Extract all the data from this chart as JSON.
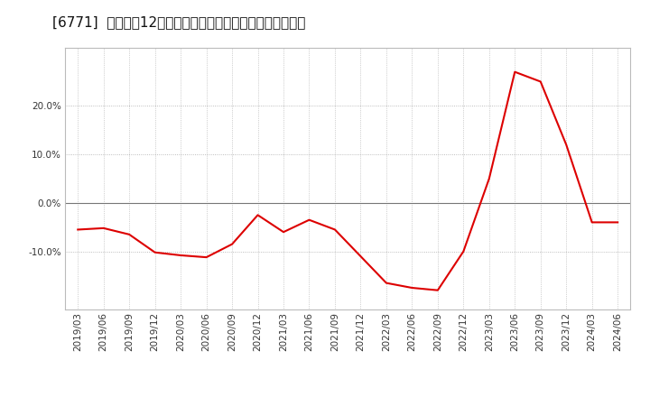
{
  "title": "[6771]  売上高の12か月移動合計の対前年同期増減率の推移",
  "line_color": "#dd0000",
  "bg_color": "#ffffff",
  "plot_bg_color": "#ffffff",
  "x_labels": [
    "2019/03",
    "2019/06",
    "2019/09",
    "2019/12",
    "2020/03",
    "2020/06",
    "2020/09",
    "2020/12",
    "2021/03",
    "2021/06",
    "2021/09",
    "2021/12",
    "2022/03",
    "2022/06",
    "2022/09",
    "2022/12",
    "2023/03",
    "2023/06",
    "2023/09",
    "2023/12",
    "2024/03",
    "2024/06"
  ],
  "y_values": [
    -5.5,
    -5.2,
    -6.5,
    -10.2,
    -10.8,
    -11.2,
    -8.5,
    -2.5,
    -6.0,
    -3.5,
    -5.5,
    -11.0,
    -16.5,
    -17.5,
    -18.0,
    -10.0,
    5.0,
    27.0,
    25.0,
    12.0,
    -4.0,
    -4.0
  ],
  "ylim": [
    -22,
    32
  ],
  "yticks": [
    -10.0,
    0.0,
    10.0,
    20.0
  ],
  "title_fontsize": 11,
  "tick_fontsize": 7.5
}
